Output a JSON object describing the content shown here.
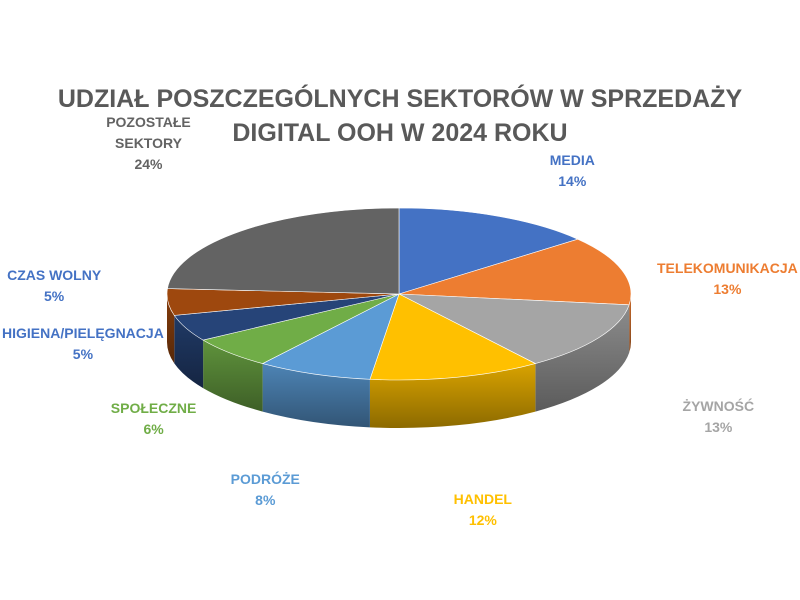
{
  "title_lines": [
    "UDZIAŁ POSZCZEGÓLNYCH SEKTORÓW W SPRZEDAŻY",
    "DIGITAL OOH W 2024 ROKU"
  ],
  "chart_data": {
    "type": "pie",
    "title": "UDZIAŁ POSZCZEGÓLNYCH SEKTORÓW W SPRZEDAŻY DIGITAL OOH W 2024 ROKU",
    "style": "3d",
    "unit": "%",
    "slices": [
      {
        "label": [
          "MEDIA"
        ],
        "value": 14,
        "value_label": "14%",
        "color": "#4472C4"
      },
      {
        "label": [
          "TELEKOMUNIKACJA"
        ],
        "value": 13,
        "value_label": "13%",
        "color": "#ED7D31"
      },
      {
        "label": [
          "ŻYWNOŚĆ"
        ],
        "value": 13,
        "value_label": "13%",
        "color": "#A5A5A5"
      },
      {
        "label": [
          "HANDEL"
        ],
        "value": 12,
        "value_label": "12%",
        "color": "#FFC000"
      },
      {
        "label": [
          "PODRÓŻE"
        ],
        "value": 8,
        "value_label": "8%",
        "color": "#5B9BD5"
      },
      {
        "label": [
          "SPOŁECZNE"
        ],
        "value": 6,
        "value_label": "6%",
        "color": "#70AD47"
      },
      {
        "label": [
          "HIGIENA/PIELĘGNACJA"
        ],
        "value": 5,
        "value_label": "5%",
        "color": "#264478"
      },
      {
        "label": [
          "CZAS WOLNY"
        ],
        "value": 5,
        "value_label": "5%",
        "color": "#9E480E"
      },
      {
        "label": [
          "POZOSTAŁE",
          "SEKTORY"
        ],
        "value": 24,
        "value_label": "24%",
        "color": "#636363"
      }
    ]
  }
}
